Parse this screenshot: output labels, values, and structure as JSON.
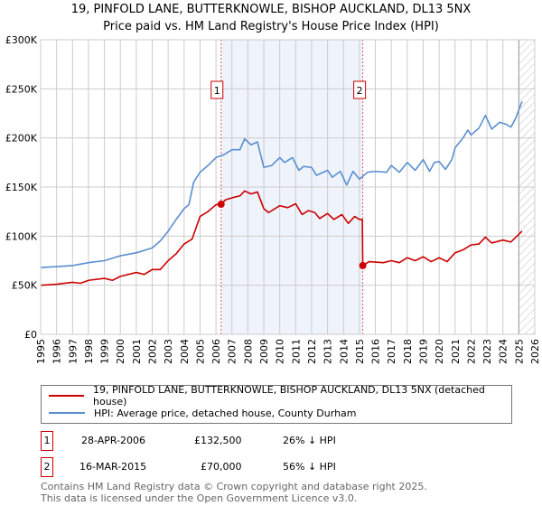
{
  "title": "19, PINFOLD LANE, BUTTERKNOWLE, BISHOP AUCKLAND, DL13 5NX",
  "subtitle": "Price paid vs. HM Land Registry's House Price Index (HPI)",
  "chart_data": {
    "type": "line",
    "title": "19, PINFOLD LANE, BUTTERKNOWLE, BISHOP AUCKLAND, DL13 5NX",
    "xlabel": "",
    "ylabel": "",
    "xlim": [
      1995,
      2026
    ],
    "ylim": [
      0,
      300000
    ],
    "y_ticks": [
      {
        "v": 0,
        "label": "£0"
      },
      {
        "v": 50000,
        "label": "£50K"
      },
      {
        "v": 100000,
        "label": "£100K"
      },
      {
        "v": 150000,
        "label": "£150K"
      },
      {
        "v": 200000,
        "label": "£200K"
      },
      {
        "v": 250000,
        "label": "£250K"
      },
      {
        "v": 300000,
        "label": "£300K"
      }
    ],
    "x_ticks": [
      "1995",
      "1996",
      "1997",
      "1998",
      "1999",
      "2000",
      "2001",
      "2002",
      "2003",
      "2004",
      "2005",
      "2006",
      "2007",
      "2008",
      "2009",
      "2010",
      "2011",
      "2012",
      "2013",
      "2014",
      "2015",
      "2016",
      "2017",
      "2018",
      "2019",
      "2020",
      "2021",
      "2022",
      "2023",
      "2024",
      "2025",
      "2026"
    ],
    "grid": true,
    "shaded_region": [
      2006.32,
      2015.21
    ],
    "forecast_hatch_from": 2025.0,
    "series": [
      {
        "name": "19, PINFOLD LANE, BUTTERKNOWLE, BISHOP AUCKLAND, DL13 5NX (detached house)",
        "color": "#cc0000",
        "x": [
          1995,
          1996,
          1997,
          1997.5,
          1998,
          1999,
          1999.5,
          2000,
          2001,
          2001.5,
          2002,
          2002.5,
          2003,
          2003.5,
          2004,
          2004.5,
          2005,
          2005.5,
          2006,
          2006.32,
          2006.6,
          2007,
          2007.5,
          2007.8,
          2008.2,
          2008.6,
          2009,
          2009.3,
          2010,
          2010.5,
          2011,
          2011.4,
          2011.8,
          2012.2,
          2012.5,
          2013,
          2013.4,
          2013.9,
          2014.3,
          2014.7,
          2015.0,
          2015.18,
          2015.21,
          2015.6,
          2016.5,
          2017,
          2017.5,
          2018,
          2018.5,
          2019,
          2019.5,
          2020,
          2020.5,
          2021,
          2021.5,
          2022,
          2022.5,
          2022.9,
          2023.3,
          2024,
          2024.5,
          2025.2
        ],
        "y": [
          50000,
          51000,
          53000,
          52000,
          55000,
          57000,
          55000,
          59000,
          63000,
          61000,
          66000,
          66000,
          75000,
          82000,
          92000,
          97000,
          120000,
          125000,
          132000,
          132500,
          137000,
          139000,
          141000,
          146000,
          143000,
          145000,
          128000,
          124000,
          131000,
          129000,
          133000,
          122000,
          126000,
          124000,
          118000,
          123000,
          117000,
          122000,
          113000,
          120000,
          117000,
          117000,
          70000,
          74000,
          73000,
          75000,
          73000,
          78000,
          75000,
          79000,
          74000,
          78000,
          74000,
          83000,
          86000,
          91000,
          92000,
          99000,
          93000,
          96000,
          94000,
          105000
        ]
      },
      {
        "name": "HPI: Average price, detached house, County Durham",
        "color": "#5b8fd0",
        "x": [
          1995,
          1996,
          1997,
          1998,
          1999,
          2000,
          2001,
          2002,
          2002.5,
          2003,
          2003.5,
          2004,
          2004.3,
          2004.6,
          2005,
          2005.5,
          2006,
          2006.5,
          2007,
          2007.5,
          2007.8,
          2008.2,
          2008.6,
          2009,
          2009.5,
          2010,
          2010.3,
          2010.8,
          2011.2,
          2011.5,
          2012,
          2012.3,
          2013,
          2013.3,
          2013.8,
          2014.2,
          2014.6,
          2015,
          2015.5,
          2016,
          2016.7,
          2017,
          2017.5,
          2018,
          2018.5,
          2019,
          2019.4,
          2019.7,
          2020,
          2020.4,
          2020.8,
          2021,
          2021.5,
          2021.8,
          2022,
          2022.5,
          2022.9,
          2023.3,
          2023.8,
          2024.2,
          2024.5,
          2024.8,
          2025.2
        ],
        "y": [
          68000,
          69000,
          70000,
          73000,
          75000,
          80000,
          83000,
          88000,
          95000,
          105000,
          117000,
          128000,
          132000,
          155000,
          165000,
          172000,
          180000,
          183000,
          188000,
          188000,
          199000,
          193000,
          196000,
          170000,
          172000,
          180000,
          175000,
          180000,
          167000,
          171000,
          170000,
          162000,
          167000,
          160000,
          166000,
          152000,
          166000,
          158000,
          165000,
          166000,
          165000,
          172000,
          165000,
          175000,
          167000,
          178000,
          166000,
          175000,
          176000,
          168000,
          178000,
          190000,
          200000,
          208000,
          203000,
          210000,
          223000,
          209000,
          216000,
          214000,
          211000,
          220000,
          237000
        ]
      }
    ],
    "annotations": [
      {
        "label": "1",
        "x": 2006.32,
        "y": 132500
      },
      {
        "label": "2",
        "x": 2015.21,
        "y": 70000
      }
    ]
  },
  "legend": {
    "property": "19, PINFOLD LANE, BUTTERKNOWLE, BISHOP AUCKLAND, DL13 5NX (detached house)",
    "hpi": "HPI: Average price, detached house, County Durham"
  },
  "transactions": [
    {
      "num": "1",
      "date": "28-APR-2006",
      "price": "£132,500",
      "hpi": "26% ↓ HPI"
    },
    {
      "num": "2",
      "date": "16-MAR-2015",
      "price": "£70,000",
      "hpi": "56% ↓ HPI"
    }
  ],
  "footer": {
    "line1": "Contains HM Land Registry data © Crown copyright and database right 2025.",
    "line2": "This data is licensed under the Open Government Licence v3.0."
  }
}
